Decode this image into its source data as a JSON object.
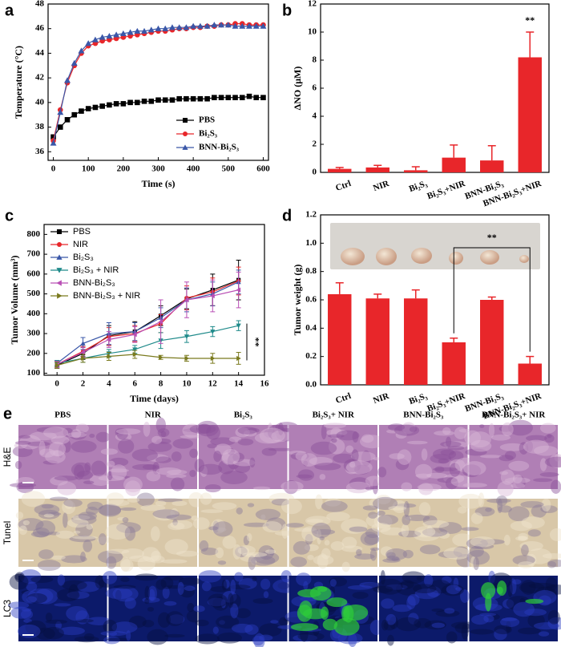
{
  "chart_data": [
    {
      "type": "line",
      "panel_label": "a",
      "x_label": "Time (s)",
      "y_label": "Temperature (°C)",
      "x": [
        0,
        20,
        40,
        60,
        80,
        100,
        120,
        140,
        160,
        180,
        200,
        220,
        240,
        260,
        280,
        300,
        320,
        340,
        360,
        380,
        400,
        420,
        440,
        460,
        480,
        500,
        520,
        540,
        560,
        580,
        600
      ],
      "xlim": [
        -15,
        615
      ],
      "xticks": [
        0,
        100,
        200,
        300,
        400,
        500,
        600
      ],
      "ylim": [
        35.3,
        48
      ],
      "yticks": [
        36,
        38,
        40,
        42,
        44,
        46,
        48
      ],
      "legend": "lower right",
      "legend_font": "serif",
      "series": [
        {
          "name": "PBS",
          "color": "#000000",
          "marker": "square",
          "values": [
            37.2,
            38.0,
            38.6,
            39.0,
            39.3,
            39.5,
            39.6,
            39.7,
            39.8,
            39.9,
            39.9,
            40.0,
            40.0,
            40.1,
            40.1,
            40.2,
            40.2,
            40.2,
            40.3,
            40.3,
            40.3,
            40.3,
            40.3,
            40.4,
            40.4,
            40.4,
            40.4,
            40.4,
            40.5,
            40.4,
            40.4
          ]
        },
        {
          "name": "Bi₂S₃",
          "color": "#e8262a",
          "marker": "circle",
          "values": [
            36.9,
            39.4,
            41.6,
            43.0,
            44.0,
            44.6,
            44.8,
            45.0,
            45.1,
            45.2,
            45.3,
            45.4,
            45.5,
            45.6,
            45.7,
            45.8,
            45.8,
            45.9,
            46.0,
            46.0,
            46.1,
            46.1,
            46.2,
            46.2,
            46.3,
            46.3,
            46.4,
            46.4,
            46.3,
            46.3,
            46.3
          ]
        },
        {
          "name": "BNN-Bi₂S₃",
          "color": "#3a57a8",
          "marker": "triangle-up",
          "values": [
            36.7,
            39.2,
            41.8,
            43.2,
            44.2,
            44.8,
            45.1,
            45.3,
            45.4,
            45.5,
            45.6,
            45.7,
            45.8,
            45.8,
            45.9,
            46.0,
            46.0,
            46.1,
            46.1,
            46.1,
            46.2,
            46.2,
            46.2,
            46.3,
            46.3,
            46.3,
            46.2,
            46.2,
            46.2,
            46.2,
            46.2
          ]
        }
      ]
    },
    {
      "type": "bar",
      "panel_label": "b",
      "y_label": "ΔNO (μM)",
      "color": "#e8262a",
      "categories": [
        "Ctrl",
        "NIR",
        "Bi₂S₃",
        "Bi₂S₃+NIR",
        "BNN-Bi₂S₃",
        "BNN-Bi₂S₃+NIR"
      ],
      "values": [
        0.25,
        0.35,
        0.15,
        1.05,
        0.85,
        8.2
      ],
      "errors": [
        0.1,
        0.15,
        0.25,
        0.9,
        1.05,
        1.8
      ],
      "ylim": [
        0,
        12
      ],
      "yticks": [
        0,
        2,
        4,
        6,
        8,
        10,
        12
      ],
      "annotation": "**"
    },
    {
      "type": "line",
      "panel_label": "c",
      "x_label": "Time (days)",
      "y_label": "Tumor Volume (mm³)",
      "x": [
        0,
        2,
        4,
        6,
        8,
        10,
        12,
        14
      ],
      "xlim": [
        -1,
        16
      ],
      "xticks": [
        0,
        2,
        4,
        6,
        8,
        10,
        12,
        14,
        16
      ],
      "ylim": [
        90,
        850
      ],
      "yticks": [
        100,
        200,
        300,
        400,
        500,
        600,
        700,
        800
      ],
      "legend": "upper left",
      "legend_font": "sans",
      "annotation": "**",
      "series": [
        {
          "name": "PBS",
          "color": "#000000",
          "marker": "square",
          "values": [
            140,
            200,
            290,
            310,
            390,
            475,
            520,
            570
          ],
          "errors": [
            15,
            30,
            50,
            50,
            50,
            50,
            80,
            100
          ]
        },
        {
          "name": "NIR",
          "color": "#e8262a",
          "marker": "circle",
          "values": [
            145,
            210,
            285,
            300,
            350,
            480,
            510,
            565
          ],
          "errors": [
            15,
            25,
            45,
            40,
            45,
            60,
            70,
            70
          ]
        },
        {
          "name": "Bi₂S₃",
          "color": "#3a57a8",
          "marker": "triangle-up",
          "values": [
            150,
            250,
            300,
            310,
            380,
            470,
            500,
            560
          ],
          "errors": [
            15,
            30,
            55,
            45,
            50,
            60,
            60,
            60
          ]
        },
        {
          "name": "Bi₂S₃ + NIR",
          "color": "#1f8a8a",
          "marker": "triangle-down",
          "values": [
            150,
            175,
            200,
            220,
            265,
            285,
            310,
            340
          ],
          "errors": [
            15,
            20,
            20,
            20,
            40,
            30,
            25,
            25
          ]
        },
        {
          "name": "BNN-Bi₂S₃",
          "color": "#b94fb5",
          "marker": "triangle-left",
          "values": [
            145,
            205,
            270,
            295,
            360,
            470,
            490,
            520
          ],
          "errors": [
            15,
            25,
            40,
            40,
            110,
            90,
            80,
            90
          ]
        },
        {
          "name": "BNN-Bi₂S₃ + NIR",
          "color": "#7a7a1e",
          "marker": "triangle-right",
          "values": [
            140,
            175,
            185,
            195,
            180,
            175,
            175,
            175
          ],
          "errors": [
            15,
            20,
            20,
            20,
            10,
            15,
            25,
            30
          ]
        }
      ]
    },
    {
      "type": "bar",
      "panel_label": "d",
      "y_label": "Tumor weight (g)",
      "color": "#e8262a",
      "categories": [
        "Ctrl",
        "NIR",
        "Bi₂S₃",
        "Bi₂S₃+NIR",
        "BNN-Bi₂S₃",
        "BNN-Bi₂S₃+NIR"
      ],
      "values": [
        0.64,
        0.61,
        0.61,
        0.3,
        0.6,
        0.15
      ],
      "errors": [
        0.08,
        0.03,
        0.06,
        0.03,
        0.02,
        0.05
      ],
      "ylim": [
        0,
        1.2
      ],
      "yticks": [
        {
          "value": 0,
          "label": "0.0"
        },
        0.2,
        0.4,
        0.6,
        0.8,
        {
          "value": 1,
          "label": "1.0"
        },
        1.2
      ],
      "annotation": "**"
    }
  ],
  "histology": {
    "panel_label": "e",
    "columns": [
      "PBS",
      "NIR",
      "Bi₂S₃",
      "Bi₂S₃+ NIR",
      "BNN-Bi₂S₃",
      "BNN-Bi₂S₃+ NIR"
    ],
    "rows": [
      "H&E",
      "Tunel",
      "LC3"
    ]
  }
}
